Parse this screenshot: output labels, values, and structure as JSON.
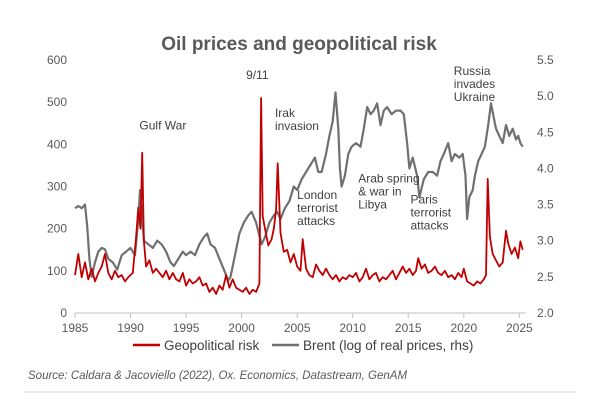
{
  "chart_data": {
    "type": "line",
    "title": "Oil prices and geopolitical risk",
    "x_ticks": [
      "1985",
      "1990",
      "1995",
      "2000",
      "2005",
      "2010",
      "2015",
      "2020",
      "2025"
    ],
    "xlim": [
      1985,
      2025.6
    ],
    "y_left": {
      "ylim": [
        0,
        600
      ],
      "ticks": [
        "0",
        "100",
        "200",
        "300",
        "400",
        "500",
        "600"
      ]
    },
    "y_right": {
      "ylim": [
        2.0,
        5.5
      ],
      "ticks": [
        "2.0",
        "2.5",
        "3.0",
        "3.5",
        "4.0",
        "4.5",
        "5.0",
        "5.5"
      ]
    },
    "grid": false,
    "legend_position": "bottom",
    "series": [
      {
        "name": "Geopolitical risk",
        "axis": "left",
        "color": "#c00000",
        "points": [
          [
            1985.0,
            90
          ],
          [
            1985.3,
            140
          ],
          [
            1985.6,
            85
          ],
          [
            1985.9,
            120
          ],
          [
            1986.2,
            80
          ],
          [
            1986.5,
            105
          ],
          [
            1986.8,
            75
          ],
          [
            1987.1,
            95
          ],
          [
            1987.4,
            110
          ],
          [
            1987.7,
            140
          ],
          [
            1988.0,
            95
          ],
          [
            1988.3,
            80
          ],
          [
            1988.6,
            100
          ],
          [
            1988.9,
            85
          ],
          [
            1989.2,
            90
          ],
          [
            1989.5,
            75
          ],
          [
            1989.8,
            85
          ],
          [
            1990.2,
            95
          ],
          [
            1990.5,
            180
          ],
          [
            1990.7,
            250
          ],
          [
            1990.9,
            200
          ],
          [
            1991.05,
            380
          ],
          [
            1991.2,
            170
          ],
          [
            1991.4,
            110
          ],
          [
            1991.7,
            125
          ],
          [
            1992.0,
            95
          ],
          [
            1992.3,
            105
          ],
          [
            1992.6,
            95
          ],
          [
            1992.9,
            85
          ],
          [
            1993.2,
            100
          ],
          [
            1993.5,
            80
          ],
          [
            1993.8,
            95
          ],
          [
            1994.1,
            80
          ],
          [
            1994.4,
            75
          ],
          [
            1994.7,
            95
          ],
          [
            1995.0,
            65
          ],
          [
            1995.3,
            80
          ],
          [
            1995.6,
            70
          ],
          [
            1995.9,
            75
          ],
          [
            1996.2,
            85
          ],
          [
            1996.5,
            65
          ],
          [
            1996.8,
            70
          ],
          [
            1997.1,
            50
          ],
          [
            1997.4,
            60
          ],
          [
            1997.7,
            45
          ],
          [
            1998.0,
            65
          ],
          [
            1998.3,
            55
          ],
          [
            1998.6,
            90
          ],
          [
            1998.9,
            60
          ],
          [
            1999.2,
            80
          ],
          [
            1999.5,
            60
          ],
          [
            1999.8,
            55
          ],
          [
            2000.1,
            50
          ],
          [
            2000.4,
            60
          ],
          [
            2000.7,
            45
          ],
          [
            2001.0,
            55
          ],
          [
            2001.3,
            50
          ],
          [
            2001.6,
            70
          ],
          [
            2001.75,
            510
          ],
          [
            2001.9,
            230
          ],
          [
            2002.1,
            200
          ],
          [
            2002.4,
            160
          ],
          [
            2002.7,
            175
          ],
          [
            2002.9,
            200
          ],
          [
            2003.1,
            245
          ],
          [
            2003.25,
            355
          ],
          [
            2003.5,
            190
          ],
          [
            2003.8,
            145
          ],
          [
            2004.1,
            150
          ],
          [
            2004.4,
            120
          ],
          [
            2004.7,
            140
          ],
          [
            2005.0,
            110
          ],
          [
            2005.3,
            100
          ],
          [
            2005.5,
            175
          ],
          [
            2005.8,
            105
          ],
          [
            2006.1,
            90
          ],
          [
            2006.4,
            85
          ],
          [
            2006.7,
            115
          ],
          [
            2007.0,
            100
          ],
          [
            2007.3,
            90
          ],
          [
            2007.6,
            105
          ],
          [
            2007.9,
            90
          ],
          [
            2008.2,
            80
          ],
          [
            2008.5,
            90
          ],
          [
            2008.8,
            75
          ],
          [
            2009.1,
            85
          ],
          [
            2009.4,
            80
          ],
          [
            2009.7,
            90
          ],
          [
            2010.0,
            85
          ],
          [
            2010.3,
            95
          ],
          [
            2010.6,
            75
          ],
          [
            2010.9,
            85
          ],
          [
            2011.2,
            105
          ],
          [
            2011.5,
            80
          ],
          [
            2011.8,
            90
          ],
          [
            2012.1,
            95
          ],
          [
            2012.4,
            75
          ],
          [
            2012.7,
            85
          ],
          [
            2013.0,
            80
          ],
          [
            2013.3,
            90
          ],
          [
            2013.6,
            100
          ],
          [
            2013.9,
            80
          ],
          [
            2014.2,
            95
          ],
          [
            2014.5,
            110
          ],
          [
            2014.8,
            95
          ],
          [
            2015.1,
            105
          ],
          [
            2015.4,
            90
          ],
          [
            2015.7,
            100
          ],
          [
            2015.9,
            130
          ],
          [
            2016.2,
            105
          ],
          [
            2016.5,
            115
          ],
          [
            2016.8,
            95
          ],
          [
            2017.1,
            100
          ],
          [
            2017.4,
            110
          ],
          [
            2017.7,
            95
          ],
          [
            2018.0,
            90
          ],
          [
            2018.3,
            100
          ],
          [
            2018.6,
            85
          ],
          [
            2018.9,
            90
          ],
          [
            2019.2,
            80
          ],
          [
            2019.5,
            95
          ],
          [
            2019.8,
            85
          ],
          [
            2020.0,
            105
          ],
          [
            2020.3,
            75
          ],
          [
            2020.6,
            70
          ],
          [
            2020.9,
            65
          ],
          [
            2021.2,
            75
          ],
          [
            2021.5,
            70
          ],
          [
            2021.8,
            80
          ],
          [
            2022.0,
            90
          ],
          [
            2022.15,
            318
          ],
          [
            2022.35,
            180
          ],
          [
            2022.6,
            140
          ],
          [
            2022.9,
            125
          ],
          [
            2023.2,
            110
          ],
          [
            2023.5,
            120
          ],
          [
            2023.8,
            195
          ],
          [
            2024.0,
            165
          ],
          [
            2024.3,
            140
          ],
          [
            2024.6,
            155
          ],
          [
            2024.9,
            130
          ],
          [
            2025.1,
            170
          ],
          [
            2025.3,
            150
          ]
        ]
      },
      {
        "name": "Brent (log of real prices, rhs)",
        "axis": "right",
        "color": "#707070",
        "points": [
          [
            1985.0,
            3.45
          ],
          [
            1985.3,
            3.48
          ],
          [
            1985.6,
            3.45
          ],
          [
            1985.9,
            3.5
          ],
          [
            1986.1,
            3.2
          ],
          [
            1986.3,
            2.75
          ],
          [
            1986.5,
            2.5
          ],
          [
            1986.8,
            2.7
          ],
          [
            1987.1,
            2.85
          ],
          [
            1987.4,
            2.9
          ],
          [
            1987.7,
            2.88
          ],
          [
            1988.0,
            2.75
          ],
          [
            1988.4,
            2.7
          ],
          [
            1988.8,
            2.6
          ],
          [
            1989.2,
            2.8
          ],
          [
            1989.6,
            2.85
          ],
          [
            1990.0,
            2.9
          ],
          [
            1990.4,
            2.8
          ],
          [
            1990.7,
            3.3
          ],
          [
            1990.85,
            3.7
          ],
          [
            1991.0,
            3.4
          ],
          [
            1991.2,
            3.0
          ],
          [
            1991.6,
            2.95
          ],
          [
            1992.0,
            2.9
          ],
          [
            1992.4,
            3.0
          ],
          [
            1992.8,
            2.95
          ],
          [
            1993.2,
            2.85
          ],
          [
            1993.6,
            2.7
          ],
          [
            1993.9,
            2.65
          ],
          [
            1994.3,
            2.75
          ],
          [
            1994.7,
            2.85
          ],
          [
            1995.0,
            2.8
          ],
          [
            1995.4,
            2.85
          ],
          [
            1995.8,
            2.8
          ],
          [
            1996.2,
            2.95
          ],
          [
            1996.6,
            3.05
          ],
          [
            1996.9,
            3.1
          ],
          [
            1997.2,
            2.95
          ],
          [
            1997.6,
            2.9
          ],
          [
            1998.0,
            2.75
          ],
          [
            1998.4,
            2.6
          ],
          [
            1998.8,
            2.45
          ],
          [
            1999.0,
            2.5
          ],
          [
            1999.4,
            2.8
          ],
          [
            1999.8,
            3.1
          ],
          [
            2000.2,
            3.25
          ],
          [
            2000.6,
            3.35
          ],
          [
            2000.9,
            3.4
          ],
          [
            2001.3,
            3.25
          ],
          [
            2001.8,
            2.95
          ],
          [
            2002.1,
            3.05
          ],
          [
            2002.5,
            3.25
          ],
          [
            2002.9,
            3.35
          ],
          [
            2003.2,
            3.4
          ],
          [
            2003.5,
            3.3
          ],
          [
            2003.9,
            3.45
          ],
          [
            2004.3,
            3.55
          ],
          [
            2004.7,
            3.75
          ],
          [
            2005.0,
            3.7
          ],
          [
            2005.4,
            3.85
          ],
          [
            2005.8,
            3.95
          ],
          [
            2006.2,
            4.05
          ],
          [
            2006.6,
            4.15
          ],
          [
            2006.9,
            3.95
          ],
          [
            2007.2,
            3.95
          ],
          [
            2007.6,
            4.2
          ],
          [
            2007.9,
            4.45
          ],
          [
            2008.2,
            4.65
          ],
          [
            2008.45,
            5.05
          ],
          [
            2008.7,
            4.55
          ],
          [
            2008.85,
            4.0
          ],
          [
            2009.0,
            3.75
          ],
          [
            2009.3,
            3.9
          ],
          [
            2009.6,
            4.2
          ],
          [
            2009.9,
            4.3
          ],
          [
            2010.3,
            4.35
          ],
          [
            2010.7,
            4.3
          ],
          [
            2011.0,
            4.55
          ],
          [
            2011.3,
            4.85
          ],
          [
            2011.6,
            4.75
          ],
          [
            2011.9,
            4.8
          ],
          [
            2012.2,
            4.9
          ],
          [
            2012.5,
            4.6
          ],
          [
            2012.8,
            4.8
          ],
          [
            2013.1,
            4.85
          ],
          [
            2013.5,
            4.75
          ],
          [
            2013.9,
            4.8
          ],
          [
            2014.3,
            4.8
          ],
          [
            2014.6,
            4.75
          ],
          [
            2014.9,
            4.35
          ],
          [
            2015.1,
            4.0
          ],
          [
            2015.4,
            4.15
          ],
          [
            2015.8,
            3.9
          ],
          [
            2016.0,
            3.6
          ],
          [
            2016.4,
            3.85
          ],
          [
            2016.8,
            3.95
          ],
          [
            2017.2,
            3.95
          ],
          [
            2017.6,
            3.9
          ],
          [
            2017.9,
            4.1
          ],
          [
            2018.2,
            4.2
          ],
          [
            2018.6,
            4.35
          ],
          [
            2018.9,
            4.1
          ],
          [
            2019.2,
            4.2
          ],
          [
            2019.6,
            4.15
          ],
          [
            2019.9,
            4.2
          ],
          [
            2020.15,
            3.9
          ],
          [
            2020.3,
            3.3
          ],
          [
            2020.5,
            3.6
          ],
          [
            2020.8,
            3.7
          ],
          [
            2021.0,
            3.9
          ],
          [
            2021.3,
            4.1
          ],
          [
            2021.6,
            4.2
          ],
          [
            2021.9,
            4.3
          ],
          [
            2022.2,
            4.6
          ],
          [
            2022.45,
            4.9
          ],
          [
            2022.7,
            4.7
          ],
          [
            2022.9,
            4.55
          ],
          [
            2023.2,
            4.45
          ],
          [
            2023.5,
            4.35
          ],
          [
            2023.8,
            4.6
          ],
          [
            2024.1,
            4.45
          ],
          [
            2024.4,
            4.55
          ],
          [
            2024.7,
            4.4
          ],
          [
            2024.9,
            4.45
          ],
          [
            2025.1,
            4.35
          ],
          [
            2025.3,
            4.3
          ]
        ]
      }
    ],
    "annotations": [
      {
        "lines": [
          "Gulf War"
        ],
        "x": 1990.8,
        "y": 435
      },
      {
        "lines": [
          "9/11"
        ],
        "x": 2000.4,
        "y": 555
      },
      {
        "lines": [
          "Irak",
          "invasion"
        ],
        "x": 2003.0,
        "y": 465
      },
      {
        "lines": [
          "London",
          "terrorist",
          "attacks"
        ],
        "x": 2005.0,
        "y": 270
      },
      {
        "lines": [
          "Arab spring",
          "& war in",
          "Libya"
        ],
        "x": 2010.5,
        "y": 310
      },
      {
        "lines": [
          "Paris",
          "terrorist",
          "attacks"
        ],
        "x": 2015.2,
        "y": 260
      },
      {
        "lines": [
          "Russia",
          "invades",
          "Ukraine"
        ],
        "x": 2019.1,
        "y": 565
      }
    ],
    "source": "Source: Caldara & Jacoviello (2022), Ox. Economics, Datastream, GenAM"
  }
}
